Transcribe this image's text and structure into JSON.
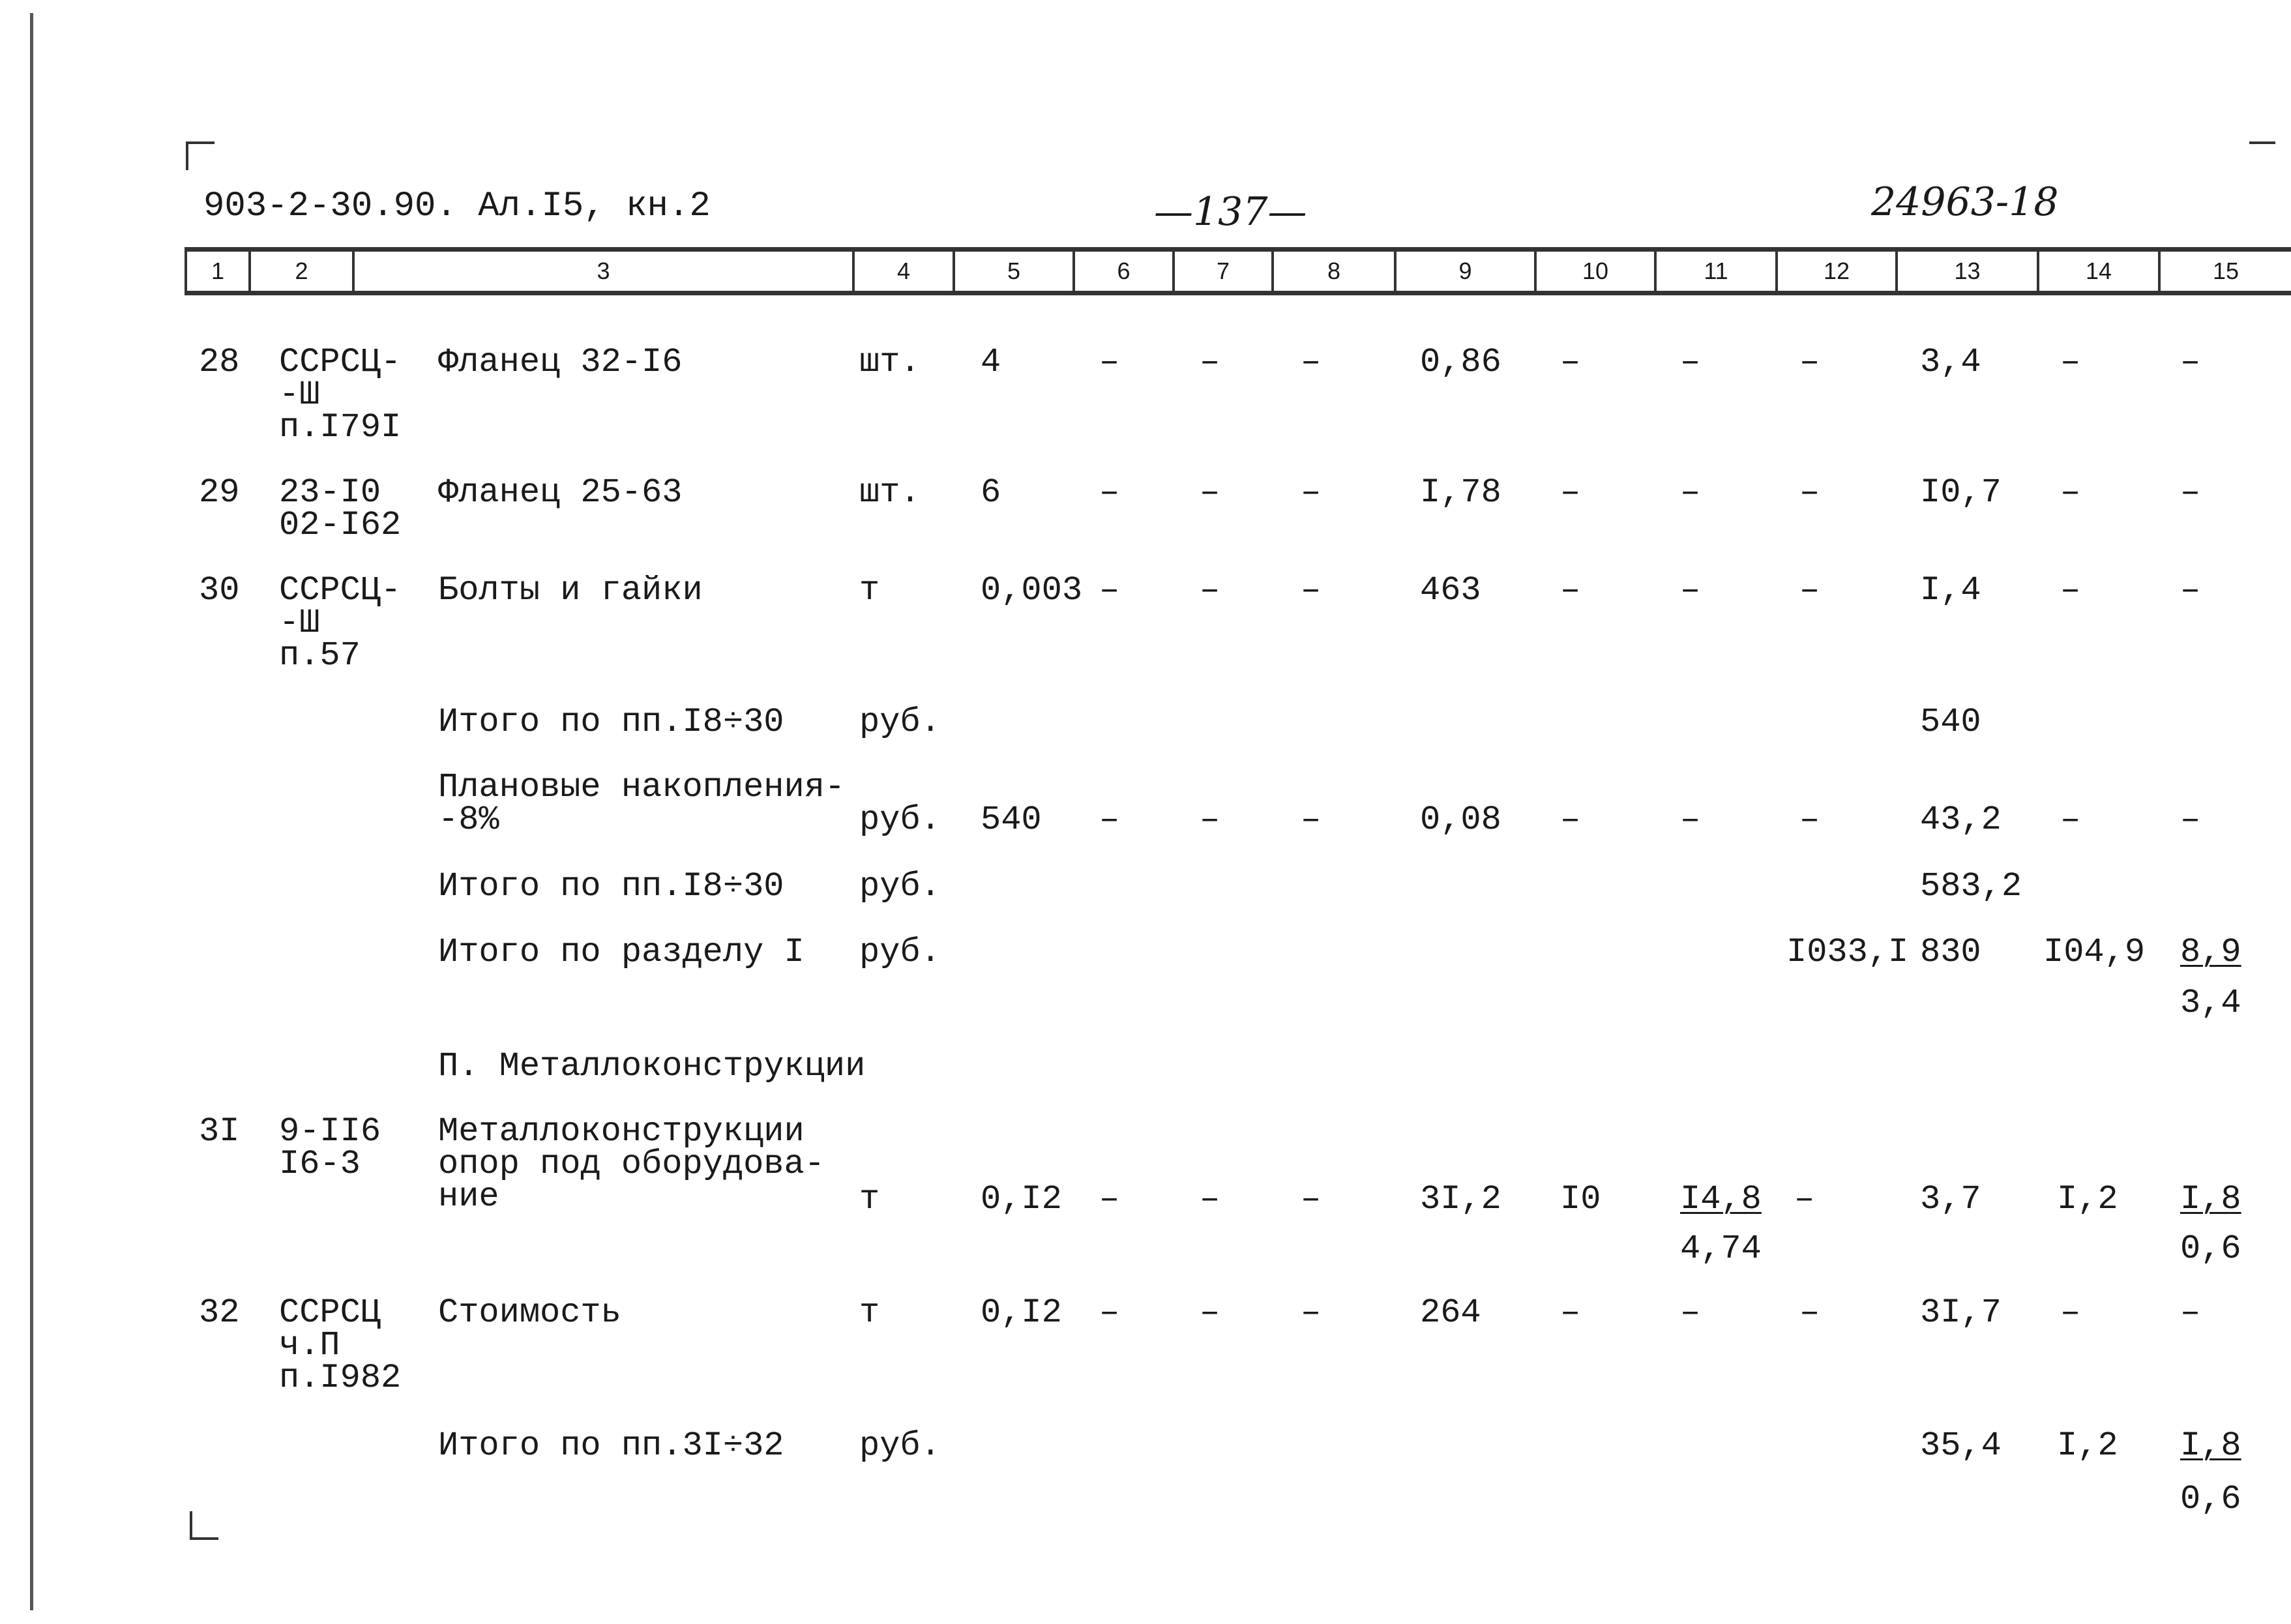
{
  "header": {
    "doc_code": "903-2-30.90. Ал.I5, кн.2",
    "page_number": "—137—",
    "stamp": "24963-18"
  },
  "columns": [
    "1",
    "2",
    "3",
    "4",
    "5",
    "6",
    "7",
    "8",
    "9",
    "10",
    "11",
    "12",
    "13",
    "14",
    "15"
  ],
  "rows": [
    {
      "n": "28",
      "ref": [
        "ССРСЦ-",
        "-Ш",
        "п.I79I"
      ],
      "name": "Фланец 32-I6",
      "unit": "шт.",
      "c5": "4",
      "c6": "–",
      "c7": "–",
      "c8": "–",
      "c9": "0,86",
      "c10": "–",
      "c11": "–",
      "c12": "–",
      "c13": "3,4",
      "c14": "–",
      "c15": "–"
    },
    {
      "n": "29",
      "ref": [
        "23-I0",
        "02-I62"
      ],
      "name": "Фланец 25-63",
      "unit": "шт.",
      "c5": "6",
      "c6": "–",
      "c7": "–",
      "c8": "–",
      "c9": "I,78",
      "c10": "–",
      "c11": "–",
      "c12": "–",
      "c13": "I0,7",
      "c14": "–",
      "c15": "–"
    },
    {
      "n": "30",
      "ref": [
        "ССРСЦ-",
        "-Ш",
        "п.57"
      ],
      "name": "Болты и гайки",
      "unit": "т",
      "c5": "0,003",
      "c6": "–",
      "c7": "–",
      "c8": "–",
      "c9": "463",
      "c10": "–",
      "c11": "–",
      "c12": "–",
      "c13": "I,4",
      "c14": "–",
      "c15": "–"
    }
  ],
  "subtotal1": {
    "name": "Итого по пп.I8÷30",
    "unit": "руб.",
    "c13": "540"
  },
  "planned": {
    "name": [
      "Плановые накопления-",
      "-8%"
    ],
    "unit": "руб.",
    "c5": "540",
    "c6": "–",
    "c7": "–",
    "c8": "–",
    "c9": "0,08",
    "c10": "–",
    "c11": "–",
    "c12": "–",
    "c13": "43,2",
    "c14": "–",
    "c15": "–"
  },
  "subtotal2": {
    "name": "Итого по пп.I8÷30",
    "unit": "руб.",
    "c13": "583,2"
  },
  "section_total": {
    "name": "Итого по разделу I",
    "unit": "руб.",
    "c12": "I033,I",
    "c13": "830",
    "c14": "I04,9",
    "c15_top": "8,9",
    "c15_bottom": "3,4"
  },
  "section2_title": "П. Металлоконструкции",
  "row31": {
    "n": "3I",
    "ref": [
      "9-II6",
      "I6-3"
    ],
    "name": [
      "Металлоконструкции",
      "опор под оборудова-",
      "ние"
    ],
    "unit": "т",
    "c5": "0,I2",
    "c6": "–",
    "c7": "–",
    "c8": "–",
    "c9": "3I,2",
    "c10": "I0",
    "c11_top": "I4,8",
    "c11_bottom": "4,74",
    "c12": "–",
    "c13": "3,7",
    "c14": "I,2",
    "c15_top": "I,8",
    "c15_bottom": "0,6"
  },
  "row32": {
    "n": "32",
    "ref": [
      "ССРСЦ",
      "ч.П",
      "п.I982"
    ],
    "name": "Стоимость",
    "unit": "т",
    "c5": "0,I2",
    "c6": "–",
    "c7": "–",
    "c8": "–",
    "c9": "264",
    "c10": "–",
    "c11": "–",
    "c12": "–",
    "c13": "3I,7",
    "c14": "–",
    "c15": "–"
  },
  "subtotal3": {
    "name": "Итого по пп.3I÷32",
    "unit": "руб.",
    "c13": "35,4",
    "c14": "I,2",
    "c15_top": "I,8",
    "c15_bottom": "0,6"
  }
}
